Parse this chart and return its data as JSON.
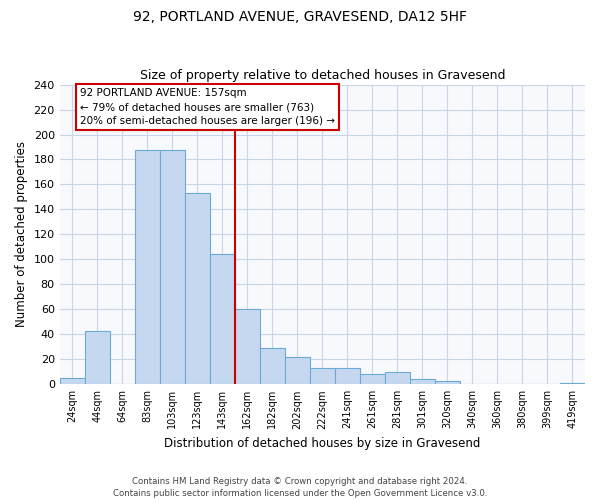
{
  "title": "92, PORTLAND AVENUE, GRAVESEND, DA12 5HF",
  "subtitle": "Size of property relative to detached houses in Gravesend",
  "xlabel": "Distribution of detached houses by size in Gravesend",
  "ylabel": "Number of detached properties",
  "bar_labels": [
    "24sqm",
    "44sqm",
    "64sqm",
    "83sqm",
    "103sqm",
    "123sqm",
    "143sqm",
    "162sqm",
    "182sqm",
    "202sqm",
    "222sqm",
    "241sqm",
    "261sqm",
    "281sqm",
    "301sqm",
    "320sqm",
    "340sqm",
    "360sqm",
    "380sqm",
    "399sqm",
    "419sqm"
  ],
  "bar_values": [
    5,
    43,
    0,
    188,
    188,
    153,
    104,
    60,
    29,
    22,
    13,
    13,
    8,
    10,
    4,
    3,
    0,
    0,
    0,
    0,
    1
  ],
  "bar_color": "#c5d8f0",
  "bar_edge_color": "#6aaad4",
  "grid_color": "#c8d4e8",
  "vline_index": 7,
  "annotation_text_line1": "92 PORTLAND AVENUE: 157sqm",
  "annotation_text_line2": "← 79% of detached houses are smaller (763)",
  "annotation_text_line3": "20% of semi-detached houses are larger (196) →",
  "annotation_box_color": "#ffffff",
  "annotation_box_edge_color": "#cc0000",
  "vline_color": "#cc0000",
  "footer_line1": "Contains HM Land Registry data © Crown copyright and database right 2024.",
  "footer_line2": "Contains public sector information licensed under the Open Government Licence v3.0.",
  "ylim": [
    0,
    240
  ],
  "yticks": [
    0,
    20,
    40,
    60,
    80,
    100,
    120,
    140,
    160,
    180,
    200,
    220,
    240
  ],
  "figsize": [
    6.0,
    5.0
  ],
  "dpi": 100
}
